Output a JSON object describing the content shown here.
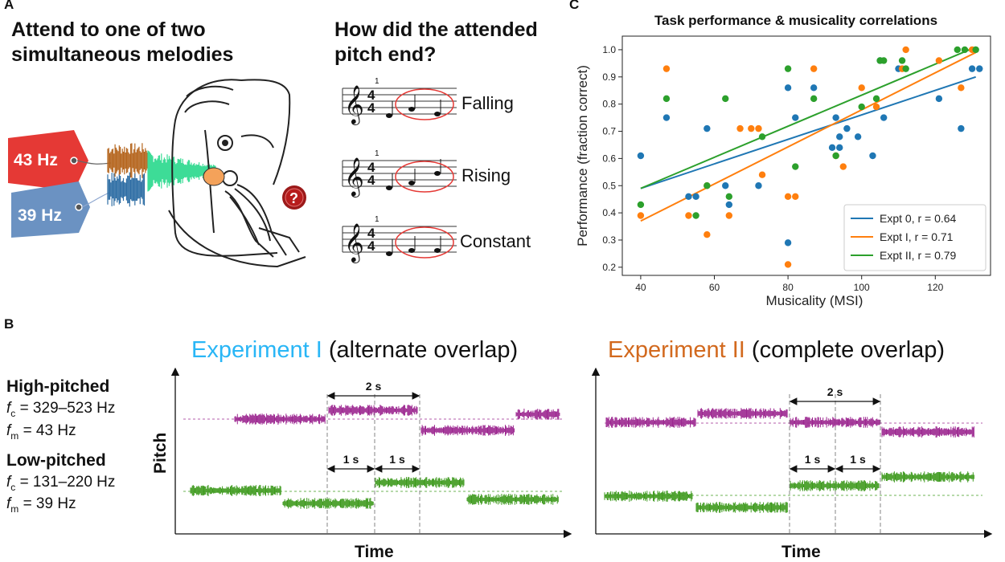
{
  "panel_a": {
    "letter": "A",
    "title_line1": "Attend to one of two",
    "title_line2": "simultaneous melodies",
    "tag_high": "43 Hz",
    "tag_low": "39 Hz",
    "question_line1": "How did the attended",
    "question_line2": "pitch end?",
    "bar_number": "1",
    "options": [
      "Falling",
      "Rising",
      "Constant"
    ],
    "colors": {
      "tag_high": "#e53935",
      "tag_low": "#5b86b8",
      "wave_high": "#b5651d",
      "wave_low": "#2e6da4",
      "wave_mix": "#3ddc97",
      "circle": "#e53935"
    }
  },
  "panel_b": {
    "letter": "B",
    "high_label": "High-pitched",
    "high_fc": "= 329–523 Hz",
    "high_fm": "= 43 Hz",
    "low_label": "Low-pitched",
    "low_fc": "= 131–220 Hz",
    "low_fm": "= 39 Hz",
    "fc_symbol": "f",
    "fc_sub": "c",
    "fm_sub": "m",
    "exp1_name": "Experiment I",
    "exp1_desc": "(alternate overlap)",
    "exp2_name": "Experiment II",
    "exp2_desc": "(complete overlap)",
    "ylabel": "Pitch",
    "xlabel": "Time",
    "two_s": "2 s",
    "one_s": "1 s",
    "colors": {
      "exp1": "#29b6f6",
      "exp2": "#d2691e",
      "high": "#9c2790",
      "low": "#3e9a1e"
    }
  },
  "panel_c": {
    "letter": "C",
    "chart_data": {
      "type": "scatter",
      "title": "Task performance & musicality correlations",
      "xlabel": "Musicality (MSI)",
      "ylabel": "Performance (fraction correct)",
      "xlim": [
        35,
        135
      ],
      "ylim": [
        0.17,
        1.05
      ],
      "xticks": [
        40,
        60,
        80,
        100,
        120
      ],
      "yticks": [
        0.2,
        0.3,
        0.4,
        0.5,
        0.6,
        0.7,
        0.8,
        0.9,
        1.0
      ],
      "grid": false,
      "legend_position": "bottom-right",
      "series": [
        {
          "name": "Expt 0, r = 0.64",
          "color": "#1f77b4",
          "fit": [
            [
              40,
              0.49
            ],
            [
              131,
              0.9
            ]
          ],
          "points": [
            [
              40,
              0.61
            ],
            [
              47,
              0.75
            ],
            [
              53,
              0.46
            ],
            [
              55,
              0.46
            ],
            [
              58,
              0.71
            ],
            [
              63,
              0.5
            ],
            [
              64,
              0.43
            ],
            [
              72,
              0.5
            ],
            [
              80,
              0.86
            ],
            [
              80,
              0.29
            ],
            [
              82,
              0.75
            ],
            [
              87,
              0.86
            ],
            [
              92,
              0.64
            ],
            [
              93,
              0.75
            ],
            [
              94,
              0.64
            ],
            [
              94,
              0.68
            ],
            [
              96,
              0.71
            ],
            [
              99,
              0.68
            ],
            [
              103,
              0.61
            ],
            [
              105,
              0.96
            ],
            [
              106,
              0.75
            ],
            [
              110,
              0.93
            ],
            [
              121,
              0.82
            ],
            [
              127,
              0.71
            ],
            [
              130,
              0.93
            ],
            [
              132,
              0.93
            ]
          ]
        },
        {
          "name": "Expt I, r = 0.71",
          "color": "#ff7f0e",
          "fit": [
            [
              40,
              0.37
            ],
            [
              131,
              0.99
            ]
          ],
          "points": [
            [
              40,
              0.39
            ],
            [
              47,
              0.93
            ],
            [
              53,
              0.39
            ],
            [
              58,
              0.32
            ],
            [
              58,
              0.5
            ],
            [
              64,
              0.39
            ],
            [
              67,
              0.71
            ],
            [
              70,
              0.71
            ],
            [
              72,
              0.71
            ],
            [
              73,
              0.54
            ],
            [
              80,
              0.46
            ],
            [
              80,
              0.21
            ],
            [
              82,
              0.46
            ],
            [
              87,
              0.93
            ],
            [
              93,
              0.61
            ],
            [
              95,
              0.57
            ],
            [
              100,
              0.86
            ],
            [
              104,
              0.79
            ],
            [
              111,
              0.93
            ],
            [
              112,
              1.0
            ],
            [
              121,
              0.96
            ],
            [
              127,
              0.86
            ],
            [
              130,
              1.0
            ]
          ]
        },
        {
          "name": "Expt II, r = 0.79",
          "color": "#2ca02c",
          "fit": [
            [
              40,
              0.49
            ],
            [
              131,
              1.01
            ]
          ],
          "points": [
            [
              40,
              0.43
            ],
            [
              47,
              0.82
            ],
            [
              55,
              0.39
            ],
            [
              58,
              0.5
            ],
            [
              63,
              0.82
            ],
            [
              64,
              0.46
            ],
            [
              73,
              0.68
            ],
            [
              80,
              0.93
            ],
            [
              82,
              0.57
            ],
            [
              87,
              0.82
            ],
            [
              93,
              0.61
            ],
            [
              100,
              0.79
            ],
            [
              104,
              0.82
            ],
            [
              105,
              0.96
            ],
            [
              106,
              0.96
            ],
            [
              111,
              0.96
            ],
            [
              112,
              0.93
            ],
            [
              126,
              1.0
            ],
            [
              128,
              1.0
            ],
            [
              131,
              1.0
            ]
          ]
        }
      ]
    }
  }
}
